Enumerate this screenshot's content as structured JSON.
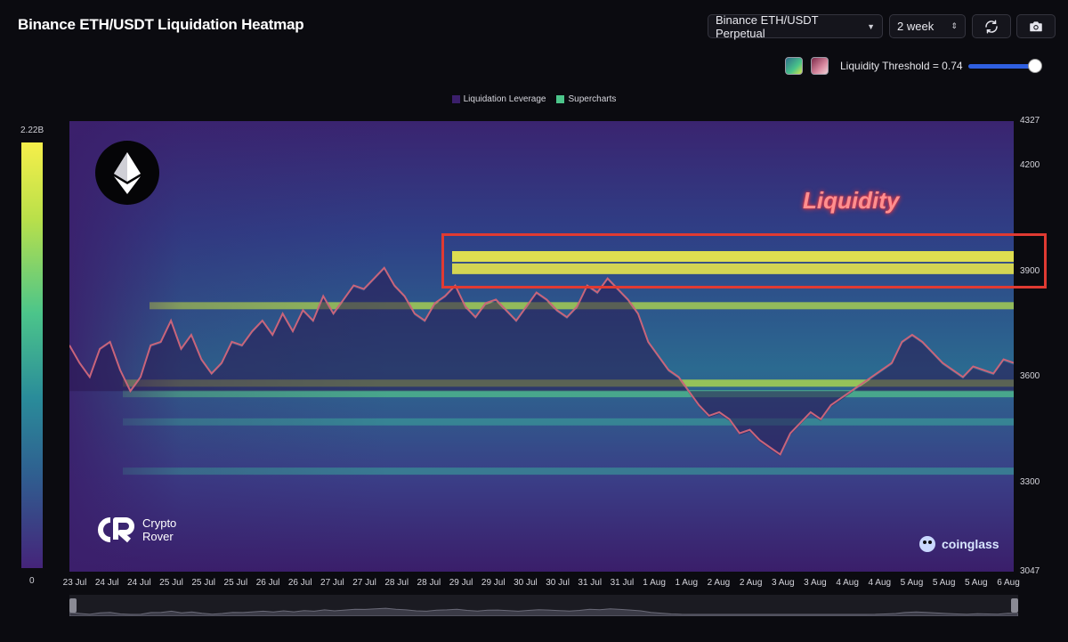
{
  "app": {
    "title": "Binance ETH/USDT Liquidation Heatmap"
  },
  "toolbar": {
    "pair_select": {
      "value": "Binance ETH/USDT Perpetual"
    },
    "period_select": {
      "value": "2 week"
    },
    "refresh_icon": "refresh-icon",
    "camera_icon": "camera-icon"
  },
  "threshold": {
    "label": "Liquidity Threshold = 0.74",
    "value": 0.74
  },
  "colors": {
    "accent": "#2f5fe0",
    "highlight": "#e03a32",
    "annotation": "#ff8f8f"
  },
  "legend": [
    {
      "label": "Liquidation Leverage",
      "color": "#3b1f6b"
    },
    {
      "label": "Supercharts",
      "color": "#4cc58a"
    }
  ],
  "colorbar": {
    "max_label": "2.22B",
    "min_label": "0"
  },
  "annotation": {
    "text": "Liquidity"
  },
  "branding": {
    "line1": "Crypto",
    "line2": "Rover",
    "watermark": "coinglass"
  },
  "chart_data": {
    "type": "heatmap",
    "y_ticks": [
      "4327",
      "4200",
      "3900",
      "3600",
      "3300",
      "3047"
    ],
    "y_range": [
      3047,
      4327
    ],
    "x_ticks": [
      "23 Jul",
      "24 Jul",
      "24 Jul",
      "25 Jul",
      "25 Jul",
      "25 Jul",
      "26 Jul",
      "26 Jul",
      "27 Jul",
      "27 Jul",
      "28 Jul",
      "28 Jul",
      "29 Jul",
      "29 Jul",
      "30 Jul",
      "30 Jul",
      "31 Jul",
      "31 Jul",
      "1 Aug",
      "1 Aug",
      "2 Aug",
      "2 Aug",
      "3 Aug",
      "3 Aug",
      "4 Aug",
      "4 Aug",
      "5 Aug",
      "5 Aug",
      "5 Aug",
      "6 Aug"
    ],
    "price_series": [
      3690,
      3640,
      3600,
      3680,
      3700,
      3620,
      3560,
      3600,
      3690,
      3700,
      3760,
      3680,
      3720,
      3650,
      3610,
      3640,
      3700,
      3690,
      3730,
      3760,
      3720,
      3780,
      3730,
      3790,
      3760,
      3830,
      3780,
      3820,
      3860,
      3850,
      3880,
      3910,
      3860,
      3830,
      3780,
      3760,
      3810,
      3830,
      3860,
      3800,
      3770,
      3810,
      3820,
      3790,
      3760,
      3800,
      3840,
      3820,
      3790,
      3770,
      3800,
      3860,
      3840,
      3880,
      3850,
      3820,
      3780,
      3700,
      3660,
      3620,
      3600,
      3560,
      3520,
      3490,
      3500,
      3480,
      3440,
      3450,
      3420,
      3400,
      3380,
      3440,
      3470,
      3500,
      3480,
      3520,
      3540,
      3560,
      3580,
      3600,
      3620,
      3640,
      3700,
      3720,
      3700,
      3670,
      3640,
      3620,
      3600,
      3630,
      3620,
      3610,
      3650,
      3640
    ],
    "liquidity_bands": [
      {
        "price": 3945,
        "intensity": 1.0
      },
      {
        "price": 3910,
        "intensity": 0.9
      },
      {
        "price": 3800,
        "intensity": 0.7
      },
      {
        "price": 3580,
        "intensity": 0.75
      },
      {
        "price": 3550,
        "intensity": 0.6
      },
      {
        "price": 3470,
        "intensity": 0.45
      },
      {
        "price": 3330,
        "intensity": 0.4
      }
    ],
    "highlight_range": [
      3890,
      3975
    ]
  }
}
